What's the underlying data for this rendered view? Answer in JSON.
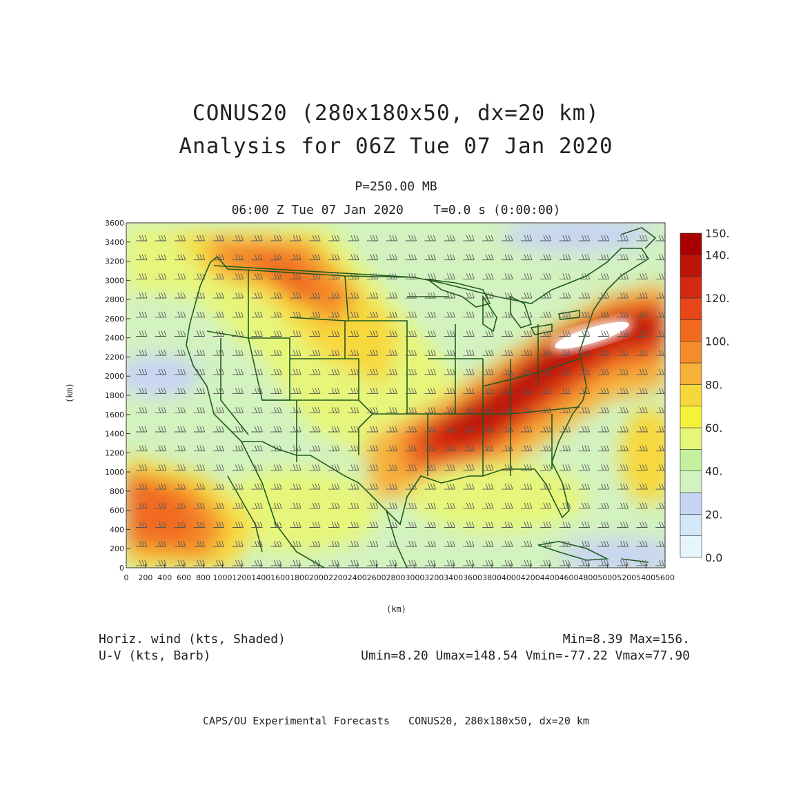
{
  "header": {
    "title_line1": "CONUS20 (280x180x50, dx=20 km)",
    "title_line2": "Analysis for 06Z Tue 07 Jan 2020",
    "level": "P=250.00 MB",
    "valid_time": "06:00 Z Tue 07 Jan 2020    T=0.0 s (0:00:00)"
  },
  "axes": {
    "x_label": "(km)",
    "y_label": "(km)",
    "x_ticks": [
      "0",
      "200",
      "400",
      "600",
      "800",
      "1000",
      "1200",
      "1400",
      "1600",
      "1800",
      "2000",
      "2200",
      "2400",
      "2600",
      "2800",
      "3000",
      "3200",
      "3400",
      "3600",
      "3800",
      "4000",
      "4200",
      "4400",
      "4600",
      "4800",
      "5000",
      "5200",
      "5400",
      "5600"
    ],
    "y_ticks": [
      "0",
      "200",
      "400",
      "600",
      "800",
      "1000",
      "1200",
      "1400",
      "1600",
      "1800",
      "2000",
      "2200",
      "2400",
      "2600",
      "2800",
      "3000",
      "3200",
      "3400",
      "3600"
    ],
    "x_range": [
      0,
      5600
    ],
    "y_range": [
      0,
      3600
    ]
  },
  "colorbar": {
    "labels": [
      "0.0",
      "20.",
      "40.",
      "60.",
      "80.",
      "100.",
      "120.",
      "140.",
      "150."
    ],
    "colors": [
      "#e6f6fb",
      "#d4e8f8",
      "#c8d4f4",
      "#d2f2c0",
      "#c4f0a0",
      "#e6f67a",
      "#f6f23c",
      "#f7d83c",
      "#f7b03a",
      "#f48c2a",
      "#f06a20",
      "#e84618",
      "#d42810",
      "#bc1408",
      "#a80000"
    ]
  },
  "footer": {
    "field_left_1": "Horiz. wind (kts, Shaded)",
    "field_left_2": "U-V (kts, Barb)",
    "stats_line1": "Min=8.39 Max=156.",
    "stats_line2": "Umin=8.20 Umax=148.54 Vmin=-77.22 Vmax=77.90",
    "credit": "CAPS/OU Experimental Forecasts   CONUS20, 280x180x50, dx=20 km"
  },
  "colors": {
    "map_lines": "#1f5a1f",
    "barbs": "#555555",
    "jet_core": "#b40000"
  }
}
